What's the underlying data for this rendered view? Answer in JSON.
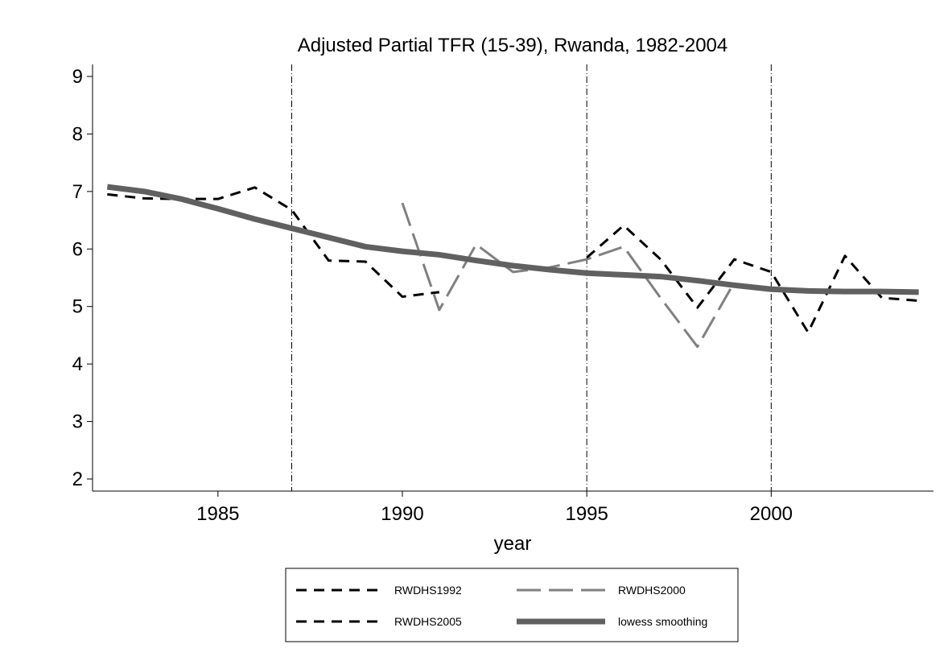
{
  "chart_data": {
    "type": "line",
    "title": "Adjusted Partial TFR (15-39), Rwanda, 1982-2004",
    "x_label": "year",
    "xlim": [
      1981.6,
      2004.4
    ],
    "xticks": [
      1985,
      1990,
      1995,
      2000
    ],
    "ylim": [
      1.79,
      9.21
    ],
    "yticks": [
      2,
      3,
      4,
      5,
      6,
      7,
      8,
      9
    ],
    "vlines": [
      1987,
      1995,
      2000
    ],
    "series": [
      {
        "name": "RWDHS1992",
        "color": "#000000",
        "style": "dash",
        "x": [
          1982,
          1983,
          1984,
          1985,
          1986,
          1987,
          1988,
          1989,
          1990,
          1991
        ],
        "values": [
          6.95,
          6.88,
          6.87,
          6.87,
          7.07,
          6.68,
          5.8,
          5.78,
          5.17,
          5.25
        ]
      },
      {
        "name": "RWDHS2000",
        "color": "#808080",
        "style": "longdash",
        "x": [
          1990,
          1991,
          1992,
          1993,
          1994,
          1995,
          1996,
          1997,
          1998,
          1999
        ],
        "values": [
          6.8,
          4.94,
          6.08,
          5.6,
          5.68,
          5.82,
          6.04,
          5.15,
          4.3,
          5.42
        ]
      },
      {
        "name": "RWDHS2005",
        "color": "#000000",
        "style": "dash",
        "x": [
          1995,
          1996,
          1997,
          1998,
          1999,
          2000,
          2001,
          2002,
          2003,
          2004
        ],
        "values": [
          5.85,
          6.41,
          5.82,
          4.98,
          5.82,
          5.6,
          4.55,
          5.88,
          5.15,
          5.1
        ]
      },
      {
        "name": "lowess smoothing",
        "color": "#606060",
        "style": "thick",
        "x": [
          1982,
          1983,
          1984,
          1985,
          1986,
          1987,
          1988,
          1989,
          1990,
          1991,
          1992,
          1993,
          1994,
          1995,
          1996,
          1997,
          1998,
          1999,
          2000,
          2001,
          2002,
          2003,
          2004
        ],
        "values": [
          7.08,
          7.0,
          6.87,
          6.7,
          6.52,
          6.36,
          6.2,
          6.04,
          5.96,
          5.9,
          5.8,
          5.71,
          5.64,
          5.58,
          5.55,
          5.52,
          5.45,
          5.37,
          5.3,
          5.27,
          5.26,
          5.26,
          5.25
        ]
      }
    ]
  }
}
